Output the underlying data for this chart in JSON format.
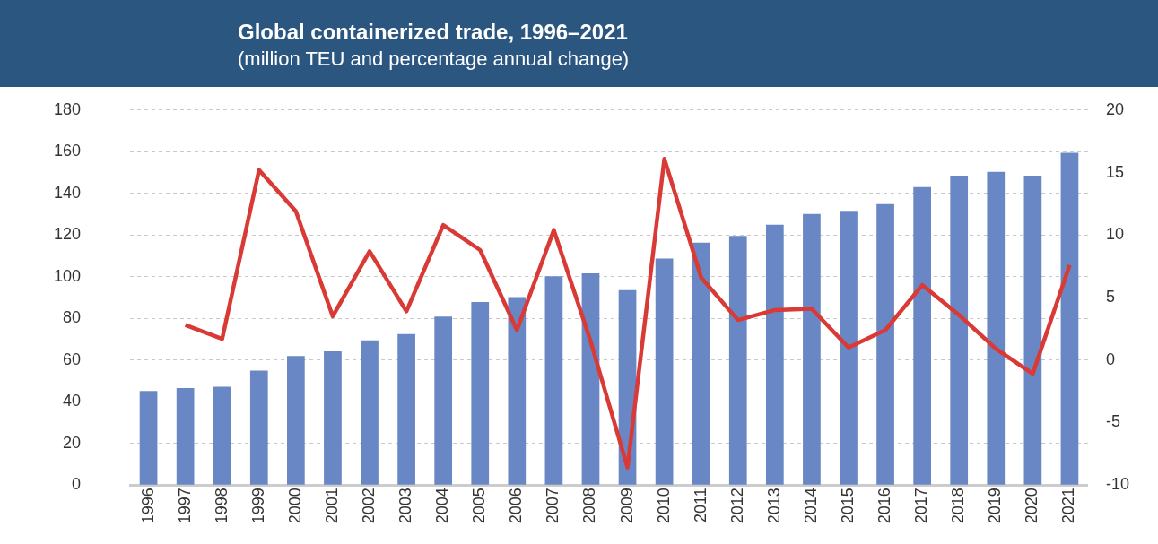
{
  "chart_data": {
    "type": "bar",
    "title": "Global containerized trade, 1996–2021",
    "subtitle": "(million TEU and percentage annual change)",
    "categories": [
      "1996",
      "1997",
      "1998",
      "1999",
      "2000",
      "2001",
      "2002",
      "2003",
      "2004",
      "2005",
      "2006",
      "2007",
      "2008",
      "2009",
      "2010",
      "2011",
      "2012",
      "2013",
      "2014",
      "2015",
      "2016",
      "2017",
      "2018",
      "2019",
      "2020",
      "2021"
    ],
    "series": [
      {
        "color": "#6a87c5",
        "values": [
          45.1,
          46.5,
          47.2,
          54.9,
          61.9,
          64.2,
          69.5,
          72.5,
          80.9,
          87.9,
          90.2,
          100.2,
          101.6,
          93.6,
          108.7,
          116.4,
          119.6,
          125,
          130.1,
          131.6,
          134.9,
          143,
          148.5,
          150.3,
          148.5,
          159.5
        ]
      },
      {
        "type": "line",
        "axis": "y2",
        "color": "#d93a35",
        "values": [
          null,
          2.8,
          1.7,
          15.2,
          11.9,
          3.5,
          8.7,
          3.9,
          10.8,
          8.8,
          2.4,
          10.4,
          1.5,
          -8.6,
          16.1,
          6.6,
          3.2,
          4.0,
          4.1,
          1.0,
          2.4,
          6.0,
          3.6,
          0.9,
          -1.1,
          7.6
        ]
      }
    ],
    "ylim": [
      0,
      180
    ],
    "yticks": [
      0,
      20,
      40,
      60,
      80,
      100,
      120,
      140,
      160,
      180
    ],
    "y2lim": [
      -10,
      20
    ],
    "y2ticks": [
      -10,
      -5,
      0,
      5,
      10,
      15,
      20
    ],
    "grid": "y",
    "legend": false,
    "marker": "none",
    "line_style": "solid"
  }
}
